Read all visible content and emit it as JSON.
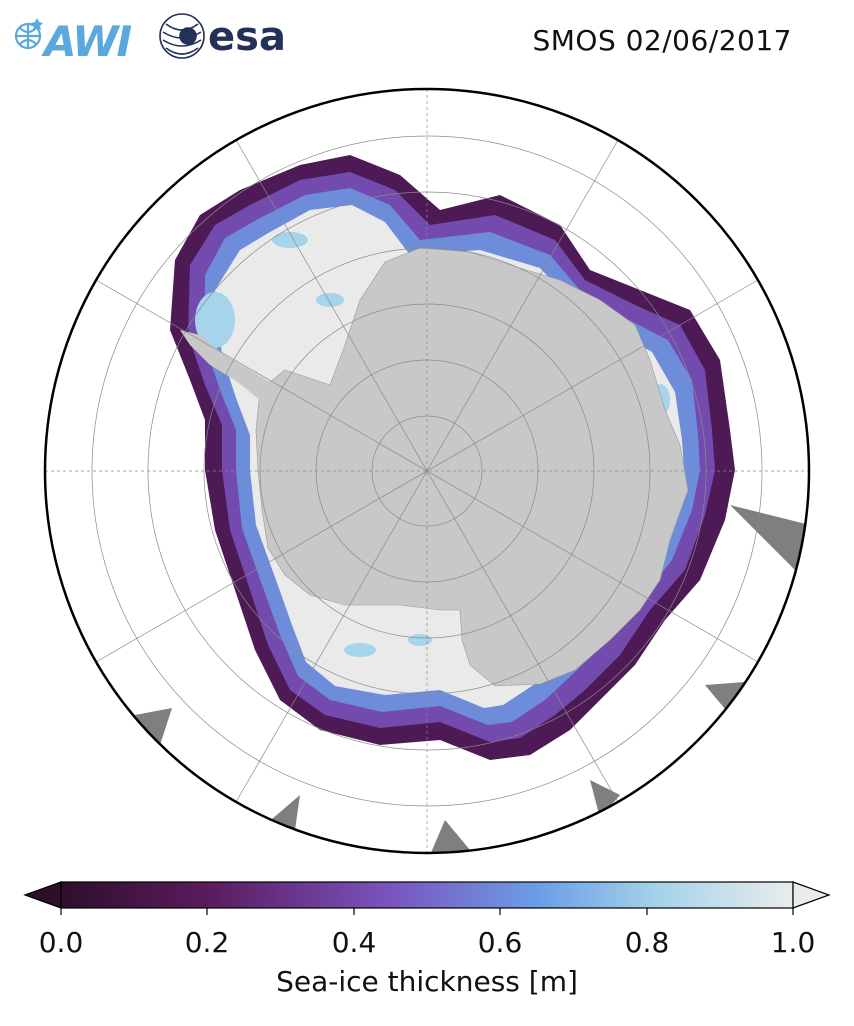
{
  "header": {
    "awi_logo_text": "AWI",
    "esa_logo_text": "esa",
    "title": "SMOS 02/06/2017"
  },
  "colors": {
    "land": "#c8c8c8",
    "no_data": "#7f7f7f",
    "ice_high": "#eaeaea",
    "awi_blue": "#5aa9dc",
    "esa_navy": "#233057"
  },
  "colorbar": {
    "label": "Sea-ice thickness [m]",
    "ticks": [
      "0.0",
      "0.2",
      "0.4",
      "0.6",
      "0.8",
      "1.0"
    ],
    "range": [
      0.0,
      1.0
    ],
    "extend": "both",
    "colormap_stops": [
      "#2d0f2b",
      "#5b1b5e",
      "#7a55c0",
      "#6b9de6",
      "#a6d4ea",
      "#e9ecec"
    ]
  }
}
